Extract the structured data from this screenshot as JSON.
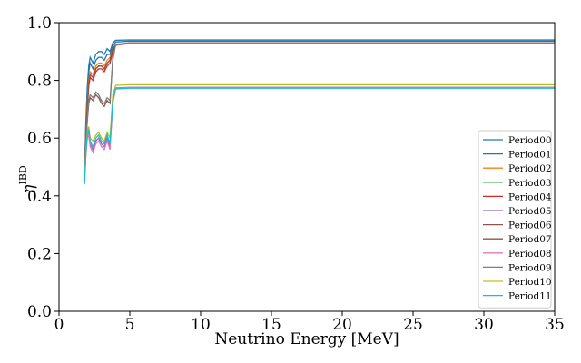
{
  "chart_data": {
    "type": "line",
    "title": "",
    "xlabel": "Neutrino Energy [MeV]",
    "ylabel": "η",
    "ylabel_superscript": "IBD",
    "xlim": [
      0,
      35
    ],
    "ylim": [
      0.0,
      1.0
    ],
    "xticks": [
      0,
      5,
      10,
      15,
      20,
      25,
      30,
      35
    ],
    "xtick_labels": [
      "0",
      "5",
      "10",
      "15",
      "20",
      "25",
      "30",
      "35"
    ],
    "yticks": [
      0.0,
      0.2,
      0.4,
      0.6,
      0.8,
      1.0
    ],
    "ytick_labels": [
      "0.0",
      "0.2",
      "0.4",
      "0.6",
      "0.8",
      "1.0"
    ],
    "grid": false,
    "legend_position": "lower-right",
    "series": [
      {
        "name": "Period00",
        "color": "#1f77b4",
        "x": [
          1.8,
          1.9,
          2.0,
          2.1,
          2.2,
          2.4,
          2.6,
          2.8,
          3.0,
          3.2,
          3.4,
          3.6,
          3.8,
          4.0,
          5.0,
          10,
          20,
          35
        ],
        "y": [
          0.47,
          0.66,
          0.78,
          0.85,
          0.88,
          0.86,
          0.89,
          0.9,
          0.9,
          0.89,
          0.91,
          0.9,
          0.93,
          0.939,
          0.94,
          0.94,
          0.94,
          0.94
        ]
      },
      {
        "name": "Period01",
        "color": "#1f77b4",
        "x": [
          1.8,
          1.9,
          2.0,
          2.1,
          2.2,
          2.4,
          2.6,
          2.8,
          3.0,
          3.2,
          3.4,
          3.6,
          3.8,
          4.0,
          5.0,
          10,
          20,
          35
        ],
        "y": [
          0.46,
          0.64,
          0.76,
          0.83,
          0.86,
          0.84,
          0.87,
          0.88,
          0.88,
          0.87,
          0.89,
          0.89,
          0.92,
          0.933,
          0.936,
          0.936,
          0.936,
          0.936
        ]
      },
      {
        "name": "Period02",
        "color": "#ff7f0e",
        "x": [
          1.8,
          1.9,
          2.0,
          2.1,
          2.2,
          2.4,
          2.6,
          2.8,
          3.0,
          3.2,
          3.4,
          3.6,
          3.8,
          4.0,
          5.0,
          10,
          20,
          35
        ],
        "y": [
          0.46,
          0.62,
          0.73,
          0.8,
          0.83,
          0.82,
          0.85,
          0.86,
          0.86,
          0.85,
          0.87,
          0.88,
          0.91,
          0.925,
          0.93,
          0.93,
          0.93,
          0.93
        ]
      },
      {
        "name": "Period03",
        "color": "#2ca02c",
        "x": [
          1.8,
          1.9,
          2.0,
          2.1,
          2.2,
          2.4,
          2.6,
          2.8,
          3.0,
          3.2,
          3.4,
          3.6,
          3.8,
          4.0,
          5.0,
          10,
          20,
          35
        ],
        "y": [
          0.45,
          0.61,
          0.71,
          0.79,
          0.82,
          0.81,
          0.84,
          0.85,
          0.85,
          0.84,
          0.86,
          0.87,
          0.91,
          0.924,
          0.929,
          0.929,
          0.929,
          0.929
        ]
      },
      {
        "name": "Period04",
        "color": "#d62728",
        "x": [
          1.8,
          1.9,
          2.0,
          2.1,
          2.2,
          2.4,
          2.6,
          2.8,
          3.0,
          3.2,
          3.4,
          3.6,
          3.8,
          4.0,
          5.0,
          10,
          20,
          35
        ],
        "y": [
          0.45,
          0.6,
          0.7,
          0.78,
          0.81,
          0.8,
          0.83,
          0.84,
          0.84,
          0.83,
          0.85,
          0.86,
          0.9,
          0.922,
          0.928,
          0.928,
          0.928,
          0.928
        ]
      },
      {
        "name": "Period05",
        "color": "#9467bd",
        "x": [
          1.8,
          1.9,
          2.0,
          2.1,
          2.2,
          2.4,
          2.6,
          2.8,
          3.0,
          3.2,
          3.4,
          3.6,
          3.8,
          4.0,
          5.0,
          10,
          20,
          35
        ],
        "y": [
          0.45,
          0.55,
          0.61,
          0.62,
          0.58,
          0.56,
          0.59,
          0.6,
          0.58,
          0.57,
          0.6,
          0.57,
          0.73,
          0.774,
          0.776,
          0.776,
          0.776,
          0.776
        ]
      },
      {
        "name": "Period06",
        "color": "#8c564b",
        "x": [
          1.8,
          1.9,
          2.0,
          2.1,
          2.2,
          2.4,
          2.6,
          2.8,
          3.0,
          3.2,
          3.4,
          3.6,
          3.8,
          4.0,
          5.0,
          10,
          20,
          35
        ],
        "y": [
          0.46,
          0.58,
          0.66,
          0.72,
          0.74,
          0.73,
          0.75,
          0.74,
          0.72,
          0.71,
          0.73,
          0.72,
          0.88,
          0.924,
          0.93,
          0.93,
          0.93,
          0.93
        ]
      },
      {
        "name": "Period07",
        "color": "#8c564b",
        "x": [
          1.8,
          1.9,
          2.0,
          2.1,
          2.2,
          2.4,
          2.6,
          2.8,
          3.0,
          3.2,
          3.4,
          3.6,
          3.8,
          4.0,
          5.0,
          10,
          20,
          35
        ],
        "y": [
          0.46,
          0.62,
          0.71,
          0.79,
          0.82,
          0.81,
          0.84,
          0.85,
          0.85,
          0.84,
          0.86,
          0.87,
          0.91,
          0.923,
          0.929,
          0.929,
          0.929,
          0.929
        ]
      },
      {
        "name": "Period08",
        "color": "#e377c2",
        "x": [
          1.8,
          1.9,
          2.0,
          2.1,
          2.2,
          2.4,
          2.6,
          2.8,
          3.0,
          3.2,
          3.4,
          3.6,
          3.8,
          4.0,
          5.0,
          10,
          20,
          35
        ],
        "y": [
          0.45,
          0.54,
          0.6,
          0.61,
          0.57,
          0.55,
          0.58,
          0.59,
          0.57,
          0.56,
          0.59,
          0.56,
          0.72,
          0.772,
          0.775,
          0.775,
          0.775,
          0.775
        ]
      },
      {
        "name": "Period09",
        "color": "#7f7f7f",
        "x": [
          1.8,
          1.9,
          2.0,
          2.1,
          2.2,
          2.4,
          2.6,
          2.8,
          3.0,
          3.2,
          3.4,
          3.6,
          3.8,
          4.0,
          5.0,
          10,
          20,
          35
        ],
        "y": [
          0.46,
          0.58,
          0.67,
          0.73,
          0.75,
          0.74,
          0.76,
          0.75,
          0.73,
          0.72,
          0.74,
          0.73,
          0.87,
          0.923,
          0.929,
          0.929,
          0.929,
          0.929
        ]
      },
      {
        "name": "Period10",
        "color": "#bcbd22",
        "x": [
          1.8,
          1.9,
          2.0,
          2.1,
          2.2,
          2.4,
          2.6,
          2.8,
          3.0,
          3.2,
          3.4,
          3.6,
          3.8,
          4.0,
          5.0,
          10,
          20,
          35
        ],
        "y": [
          0.45,
          0.56,
          0.62,
          0.64,
          0.6,
          0.59,
          0.61,
          0.62,
          0.6,
          0.59,
          0.62,
          0.6,
          0.75,
          0.783,
          0.785,
          0.785,
          0.785,
          0.785
        ]
      },
      {
        "name": "Period11",
        "color": "#17becf",
        "x": [
          1.8,
          1.9,
          2.0,
          2.1,
          2.2,
          2.4,
          2.6,
          2.8,
          3.0,
          3.2,
          3.4,
          3.6,
          3.8,
          4.0,
          5.0,
          10,
          20,
          35
        ],
        "y": [
          0.44,
          0.55,
          0.61,
          0.63,
          0.59,
          0.57,
          0.6,
          0.61,
          0.59,
          0.58,
          0.61,
          0.58,
          0.73,
          0.77,
          0.773,
          0.773,
          0.773,
          0.773
        ]
      }
    ]
  }
}
